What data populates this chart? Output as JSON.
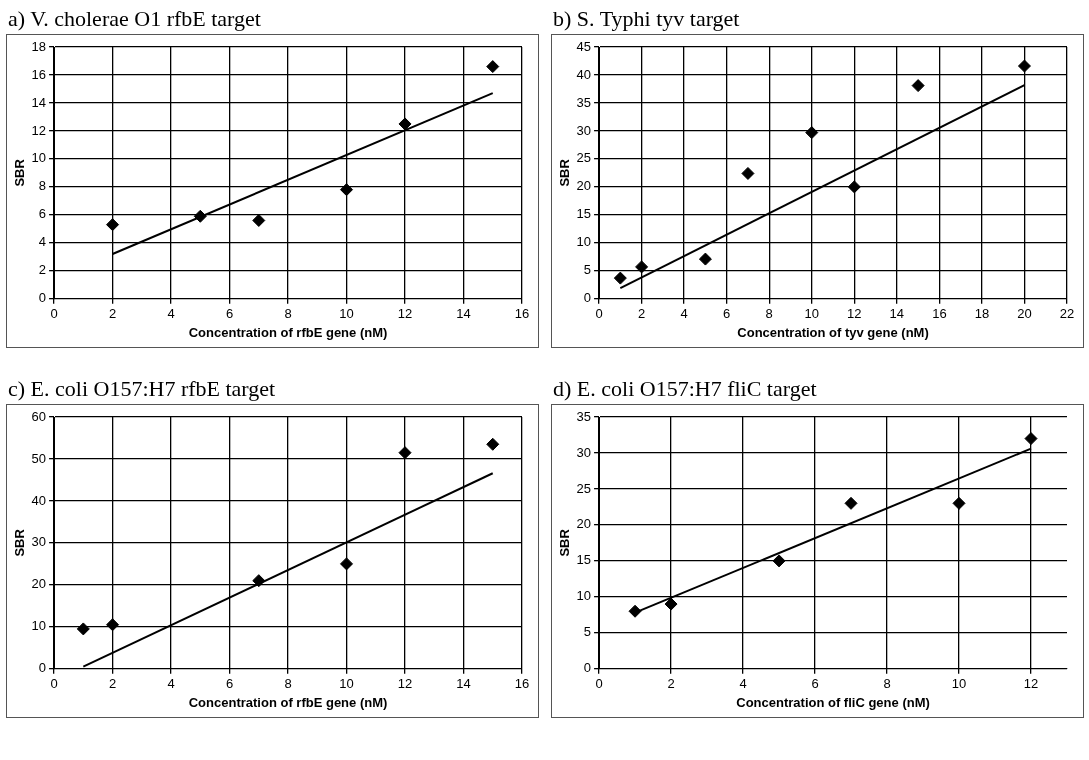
{
  "chart_data": [
    {
      "type": "scatter",
      "title": "a) V. cholerae O1 rfbE target",
      "xlabel": "Concentration of rfbE gene (nM)",
      "ylabel": "SBR",
      "xlim": [
        0,
        16
      ],
      "xticks": [
        0,
        2,
        4,
        6,
        8,
        10,
        12,
        14,
        16
      ],
      "ylim": [
        0,
        18
      ],
      "yticks": [
        0,
        2,
        4,
        6,
        8,
        10,
        12,
        14,
        16,
        18
      ],
      "grid": true,
      "legend": false,
      "marker": "diamond",
      "series": [
        {
          "type": "scatter",
          "color": "#000000",
          "x": [
            2,
            5,
            7,
            10,
            12,
            15
          ],
          "values": [
            5.3,
            5.9,
            5.6,
            7.8,
            12.5,
            16.6
          ]
        },
        {
          "type": "line",
          "color": "#000000",
          "marker": "none",
          "x": [
            2,
            15
          ],
          "values": [
            3.2,
            14.7
          ]
        }
      ]
    },
    {
      "type": "scatter",
      "title": "b) S. Typhi tyv target",
      "xlabel": "Concentration of tyv gene (nM)",
      "ylabel": "SBR",
      "xlim": [
        0,
        22
      ],
      "xticks": [
        0,
        2,
        4,
        6,
        8,
        10,
        12,
        14,
        16,
        18,
        20,
        22
      ],
      "ylim": [
        0,
        45
      ],
      "yticks": [
        0,
        5,
        10,
        15,
        20,
        25,
        30,
        35,
        40,
        45
      ],
      "grid": true,
      "legend": false,
      "marker": "diamond",
      "series": [
        {
          "type": "scatter",
          "color": "#000000",
          "x": [
            1,
            2,
            5,
            7,
            10,
            12,
            15,
            20
          ],
          "values": [
            3.7,
            5.7,
            7.1,
            22.4,
            29.7,
            20,
            38.1,
            41.6
          ]
        },
        {
          "type": "line",
          "color": "#000000",
          "marker": "none",
          "x": [
            1,
            20
          ],
          "values": [
            1.9,
            38.2
          ]
        }
      ]
    },
    {
      "type": "scatter",
      "title": "c) E. coli O157:H7 rfbE target",
      "xlabel": "Concentration of rfbE gene (nM)",
      "ylabel": "SBR",
      "xlim": [
        0,
        16
      ],
      "xticks": [
        0,
        2,
        4,
        6,
        8,
        10,
        12,
        14,
        16
      ],
      "ylim": [
        0,
        60
      ],
      "yticks": [
        0,
        10,
        20,
        30,
        40,
        50,
        60
      ],
      "grid": true,
      "legend": false,
      "marker": "diamond",
      "series": [
        {
          "type": "scatter",
          "color": "#000000",
          "x": [
            1,
            2,
            7,
            10,
            12,
            15
          ],
          "values": [
            9.5,
            10.5,
            21,
            25,
            51.5,
            53.5
          ]
        },
        {
          "type": "line",
          "color": "#000000",
          "marker": "none",
          "x": [
            1,
            15
          ],
          "values": [
            0.5,
            46.6
          ]
        }
      ]
    },
    {
      "type": "scatter",
      "title": "d) E. coli O157:H7 fliC target",
      "xlabel": "Concentration of fliC gene (nM)",
      "ylabel": "SBR",
      "xlim": [
        0,
        13
      ],
      "xticks": [
        0,
        2,
        4,
        6,
        8,
        10,
        12
      ],
      "ylim": [
        0,
        35
      ],
      "yticks": [
        0,
        5,
        10,
        15,
        20,
        25,
        30,
        35
      ],
      "grid": true,
      "legend": false,
      "marker": "diamond",
      "series": [
        {
          "type": "scatter",
          "color": "#000000",
          "x": [
            1,
            2,
            5,
            7,
            10,
            12
          ],
          "values": [
            8,
            9,
            15,
            23,
            23,
            32
          ]
        },
        {
          "type": "line",
          "color": "#000000",
          "marker": "none",
          "x": [
            1,
            12
          ],
          "values": [
            7.8,
            30.6
          ]
        }
      ]
    }
  ]
}
